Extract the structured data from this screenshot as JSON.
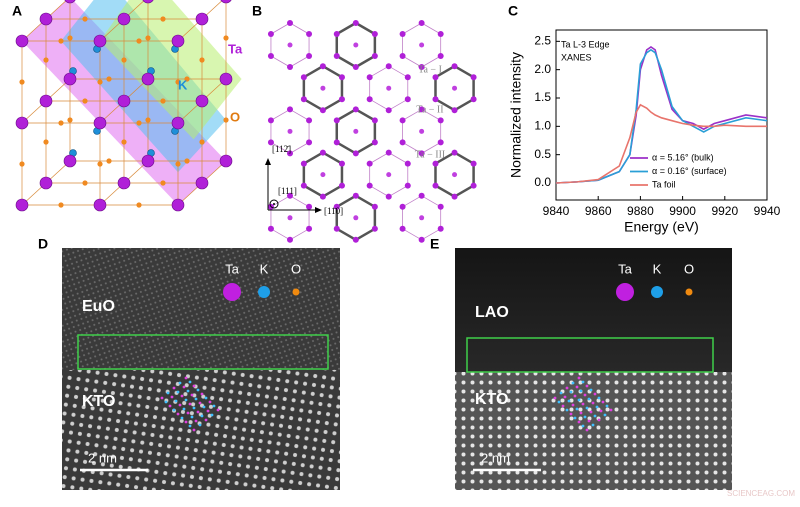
{
  "panels": {
    "A": {
      "letter": "A",
      "labels": [
        "Ta",
        "K",
        "O"
      ]
    },
    "B": {
      "letter": "B",
      "sites": [
        "Ta − I",
        "Ta − II",
        "Ta − III"
      ],
      "axes": [
        "[112̄]",
        "[111]",
        "[11̄0]"
      ]
    },
    "C": {
      "letter": "C"
    },
    "D": {
      "letter": "D",
      "film": "EuO",
      "substrate": "KTO",
      "legend": [
        "Ta",
        "K",
        "O"
      ],
      "scale": "2 nm"
    },
    "E": {
      "letter": "E",
      "film": "LAO",
      "substrate": "KTO",
      "legend": [
        "Ta",
        "K",
        "O"
      ],
      "scale": "2 nm"
    }
  },
  "watermark": "SCIENCEAG.COM",
  "chart_data": {
    "type": "line",
    "x_label": "Energy (eV)",
    "y_label": "Normalized intensity",
    "annotations": [
      "Ta L-3 Edge",
      "XANES"
    ],
    "x": [
      9840,
      9850,
      9860,
      9870,
      9875,
      9878,
      9880,
      9883,
      9885,
      9887,
      9890,
      9895,
      9900,
      9905,
      9910,
      9915,
      9920,
      9930,
      9940
    ],
    "series": [
      {
        "name": "α = 5.16° (bulk)",
        "color": "#9b30c8",
        "values": [
          0,
          0.02,
          0.05,
          0.2,
          0.5,
          1.2,
          2.0,
          2.35,
          2.4,
          2.35,
          1.9,
          1.3,
          1.1,
          1.05,
          0.95,
          1.05,
          1.1,
          1.2,
          1.15
        ]
      },
      {
        "name": "α = 0.16° (surface)",
        "color": "#2a9fd6",
        "values": [
          0,
          0.02,
          0.05,
          0.2,
          0.5,
          1.3,
          2.1,
          2.3,
          2.35,
          2.3,
          2.0,
          1.35,
          1.1,
          1.0,
          0.9,
          1.0,
          1.05,
          1.15,
          1.1
        ]
      },
      {
        "name": "Ta foil",
        "color": "#e8746c",
        "values": [
          0,
          0.02,
          0.06,
          0.3,
          0.8,
          1.25,
          1.38,
          1.32,
          1.25,
          1.2,
          1.15,
          1.1,
          1.05,
          1.02,
          1.0,
          1.0,
          1.02,
          1.0,
          1.0
        ]
      }
    ],
    "xlim": [
      9840,
      9940
    ],
    "xticks": [
      9840,
      9860,
      9880,
      9900,
      9920,
      9940
    ],
    "ylim": [
      -0.3,
      2.7
    ],
    "yticks": [
      {
        "value": 0,
        "label": "0.0"
      },
      0.5,
      {
        "value": 1,
        "label": "1.0"
      },
      1.5,
      {
        "value": 2,
        "label": "2.0"
      },
      2.5
    ]
  }
}
